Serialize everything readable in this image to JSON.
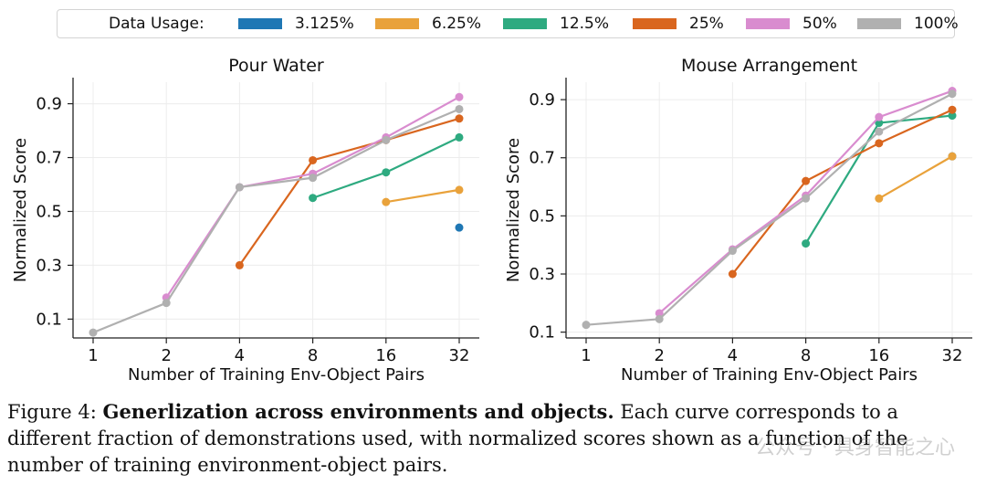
{
  "legend": {
    "title": "Data Usage:",
    "items": [
      {
        "label": "3.125%",
        "color": "#1f77b4"
      },
      {
        "label": "6.25%",
        "color": "#e9a23b"
      },
      {
        "label": "12.5%",
        "color": "#2eaa80"
      },
      {
        "label": "25%",
        "color": "#d9661f"
      },
      {
        "label": "50%",
        "color": "#d98ccf"
      },
      {
        "label": "100%",
        "color": "#b0b0b0"
      }
    ]
  },
  "chart_data": [
    {
      "type": "line",
      "title": "Pour Water",
      "xlabel": "Number of Training Env-Object Pairs",
      "ylabel": "Normalized Score",
      "categories": [
        "1",
        "2",
        "4",
        "8",
        "16",
        "32"
      ],
      "yticks": [
        "0.1",
        "0.3",
        "0.5",
        "0.7",
        "0.9"
      ],
      "ylim": [
        0.03,
        0.98
      ],
      "grid": true,
      "series": [
        {
          "name": "3.125%",
          "color": "#1f77b4",
          "values": [
            null,
            null,
            null,
            null,
            null,
            0.44
          ]
        },
        {
          "name": "6.25%",
          "color": "#e9a23b",
          "values": [
            null,
            null,
            null,
            null,
            0.535,
            0.58
          ]
        },
        {
          "name": "12.5%",
          "color": "#2eaa80",
          "values": [
            null,
            null,
            null,
            0.55,
            0.645,
            0.775
          ]
        },
        {
          "name": "25%",
          "color": "#d9661f",
          "values": [
            null,
            null,
            0.3,
            0.69,
            0.765,
            0.845
          ]
        },
        {
          "name": "50%",
          "color": "#d98ccf",
          "values": [
            null,
            0.18,
            0.59,
            0.64,
            0.775,
            0.925
          ]
        },
        {
          "name": "100%",
          "color": "#b0b0b0",
          "values": [
            0.05,
            0.16,
            0.59,
            0.625,
            0.765,
            0.88
          ]
        }
      ]
    },
    {
      "type": "line",
      "title": "Mouse Arrangement",
      "xlabel": "Number of Training Env-Object Pairs",
      "ylabel": "Normalized Score",
      "categories": [
        "1",
        "2",
        "4",
        "8",
        "16",
        "32"
      ],
      "yticks": [
        "0.1",
        "0.3",
        "0.5",
        "0.7",
        "0.9"
      ],
      "ylim": [
        0.08,
        0.96
      ],
      "grid": true,
      "series": [
        {
          "name": "3.125%",
          "color": "#1f77b4",
          "values": [
            null,
            null,
            null,
            null,
            null,
            0.705
          ]
        },
        {
          "name": "6.25%",
          "color": "#e9a23b",
          "values": [
            null,
            null,
            null,
            null,
            0.56,
            0.705
          ]
        },
        {
          "name": "12.5%",
          "color": "#2eaa80",
          "values": [
            null,
            null,
            null,
            0.405,
            0.82,
            0.845
          ]
        },
        {
          "name": "25%",
          "color": "#d9661f",
          "values": [
            null,
            null,
            0.3,
            0.62,
            0.75,
            0.865
          ]
        },
        {
          "name": "50%",
          "color": "#d98ccf",
          "values": [
            null,
            0.165,
            0.385,
            0.57,
            0.84,
            0.93
          ]
        },
        {
          "name": "100%",
          "color": "#b0b0b0",
          "values": [
            0.125,
            0.145,
            0.38,
            0.56,
            0.79,
            0.92
          ]
        }
      ]
    }
  ],
  "caption": {
    "prefix": "Figure 4: ",
    "bold": "Generlization across environments and objects.",
    "rest": " Each curve corresponds to a different fraction of demonstrations used, with normalized scores shown as a function of the number of training environment-object pairs."
  },
  "watermark": "公众号 · 具身智能之心"
}
